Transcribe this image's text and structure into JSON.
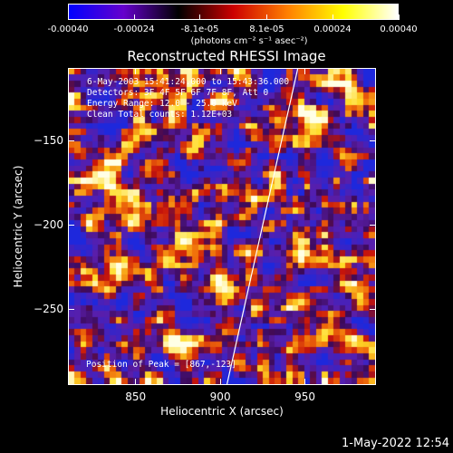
{
  "colorbar": {
    "tick_labels": [
      "-0.00040",
      "-0.00024",
      "-8.1e-05",
      "8.1e-05",
      "0.00024",
      "0.00040"
    ],
    "tick_values": [
      -0.0004,
      -0.00024,
      -8.1e-05,
      8.1e-05,
      0.00024,
      0.0004
    ],
    "units": "(photons cm⁻² s⁻¹ asec⁻²)",
    "range": [
      -0.0004,
      0.0004
    ],
    "colors": [
      "#0000ff",
      "#6600cc",
      "#000000",
      "#cc0000",
      "#ff8000",
      "#ffff00",
      "#ffffff"
    ]
  },
  "title": "Reconstructed RHESSI Image",
  "info": {
    "time": "6-May-2003 15:41:24.000 to 15:43:36.000",
    "detectors": "Detectors: 3F 4F 5F 6F 7F 8F, Att 0",
    "energy": "Energy Range: 12.0 - 25.0 keV",
    "clean": "Clean    Total counts: 1.12E+03"
  },
  "peak_label": "Position of Peak = [867,-123]",
  "axes": {
    "xlabel": "Heliocentric X (arcsec)",
    "ylabel": "Heliocentric Y (arcsec)",
    "xlim": [
      810,
      992
    ],
    "ylim": [
      -295,
      -107
    ],
    "x_ticks": [
      {
        "value": 850,
        "label": "850"
      },
      {
        "value": 900,
        "label": "900"
      },
      {
        "value": 950,
        "label": "950"
      }
    ],
    "y_ticks": [
      {
        "value": -150,
        "label": "−150"
      },
      {
        "value": -200,
        "label": "−200"
      },
      {
        "value": -250,
        "label": "−250"
      }
    ]
  },
  "limb": {
    "color": "#ffffff",
    "points": [
      [
        904,
        -295
      ],
      [
        925,
        -200
      ],
      [
        946,
        -107
      ]
    ]
  },
  "date_stamp": "1-May-2022 12:54"
}
